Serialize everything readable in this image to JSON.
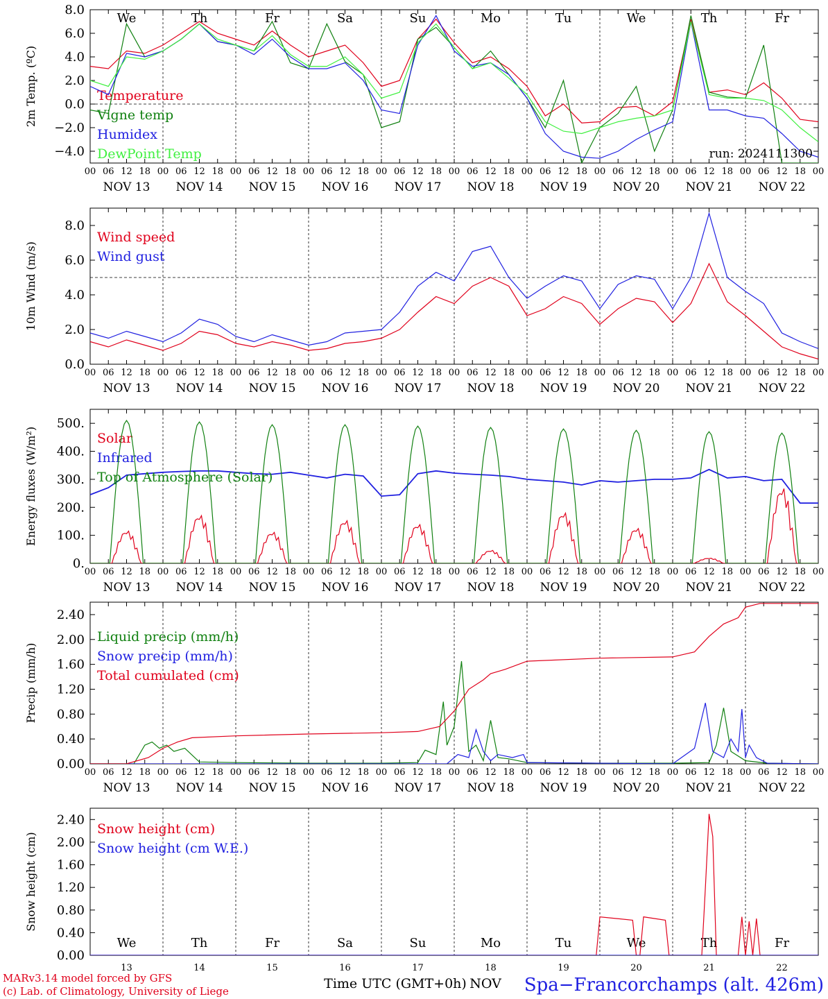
{
  "days_short": [
    "We",
    "Th",
    "Fr",
    "Sa",
    "Su",
    "Mo",
    "Tu",
    "We",
    "Th",
    "Fr"
  ],
  "weekend_color": "#e0001b",
  "dates_long": [
    "NOV 13",
    "NOV 14",
    "NOV 15",
    "NOV 16",
    "NOV 17",
    "NOV 18",
    "NOV 19",
    "NOV 20",
    "NOV 21",
    "NOV 22"
  ],
  "dates_short": [
    "13",
    "14",
    "15",
    "16",
    "17",
    "18",
    "19",
    "20",
    "21",
    "22"
  ],
  "hour_ticks": [
    "00",
    "06",
    "12",
    "18"
  ],
  "xlabel": "Time UTC (GMT+0h)",
  "month_label": "NOV",
  "footer": {
    "line1": "MARv3.14 model forced by GFS",
    "line2": "(c) Lab. of Climatology, University of Liege",
    "station": "Spa−Francorchamps (alt. 426m)",
    "left_color": "#e0001b",
    "station_color": "#2020e0"
  },
  "chart_data": [
    {
      "type": "line",
      "ylabel": "2m Temp. (ºC)",
      "ylim": [
        -5,
        8
      ],
      "yticks": [
        "8.0",
        "6.0",
        "4.0",
        "2.0",
        "0.0",
        "−2.0",
        "−4.0"
      ],
      "ytick_values": [
        8,
        6,
        4,
        2,
        0,
        -2,
        -4
      ],
      "ref_line": 0,
      "run_label": "run: 2024111300",
      "x_days": [
        0,
        0.25,
        0.5,
        0.75,
        1,
        1.25,
        1.5,
        1.75,
        2,
        2.25,
        2.5,
        2.75,
        3,
        3.25,
        3.5,
        3.75,
        4,
        4.25,
        4.5,
        4.75,
        5,
        5.25,
        5.5,
        5.75,
        6,
        6.25,
        6.5,
        6.75,
        7,
        7.25,
        7.5,
        7.75,
        8,
        8.25,
        8.5,
        8.75,
        9,
        9.25,
        9.5,
        9.75,
        10
      ],
      "series": [
        {
          "name": "Temperature",
          "color": "#e0001b",
          "values": [
            3.2,
            3.0,
            4.5,
            4.3,
            5.0,
            6.0,
            7.0,
            6.0,
            5.5,
            5.0,
            6.2,
            5.0,
            4.0,
            4.5,
            5.0,
            3.5,
            1.5,
            2.0,
            5.5,
            7.2,
            5.2,
            3.5,
            4.0,
            3.0,
            1.5,
            -1.0,
            0.0,
            -1.6,
            -1.5,
            -0.3,
            -0.2,
            -1.0,
            0.2,
            7.2,
            1.0,
            1.2,
            0.8,
            1.8,
            0.5,
            -1.3,
            -1.5
          ]
        },
        {
          "name": "Vigne temp",
          "color": "#108010",
          "values": [
            -0.5,
            -0.8,
            6.8,
            4.0,
            4.5,
            5.5,
            6.8,
            5.3,
            5.0,
            4.5,
            7.0,
            3.5,
            3.0,
            6.8,
            3.6,
            2.5,
            -2.0,
            -1.5,
            5.5,
            6.5,
            4.8,
            3.0,
            4.5,
            2.5,
            0.5,
            -2.0,
            2.0,
            -5.0,
            -2.0,
            -0.8,
            1.5,
            -4.0,
            -0.5,
            7.5,
            1.0,
            0.6,
            0.5,
            5.0,
            -5.0,
            -5.0,
            -5.0
          ]
        },
        {
          "name": "Humidex",
          "color": "#2020e0",
          "values": [
            1.5,
            0.8,
            4.3,
            4.0,
            4.5,
            5.5,
            6.8,
            5.3,
            5.0,
            4.2,
            5.5,
            4.0,
            3.0,
            3.0,
            3.5,
            2.0,
            -0.5,
            -0.8,
            5.0,
            7.5,
            4.5,
            3.2,
            3.5,
            2.5,
            0.5,
            -2.5,
            -4.0,
            -4.5,
            -4.6,
            -4.0,
            -3.0,
            -2.2,
            -1.5,
            7.0,
            -0.5,
            -0.5,
            -1.0,
            -1.2,
            -2.5,
            -4.0,
            -4.5
          ]
        },
        {
          "name": "DewPoint Temp",
          "color": "#40f040",
          "values": [
            2.0,
            1.5,
            4.0,
            3.8,
            4.5,
            5.5,
            6.8,
            5.5,
            5.0,
            4.5,
            5.8,
            4.2,
            3.2,
            3.2,
            4.0,
            2.5,
            0.5,
            1.0,
            5.2,
            6.8,
            4.8,
            3.0,
            3.5,
            2.2,
            0.8,
            -1.5,
            -2.3,
            -2.5,
            -2.0,
            -1.5,
            -1.2,
            -1.0,
            -0.5,
            7.0,
            0.8,
            0.5,
            0.5,
            0.3,
            -0.5,
            -2.0,
            -3.2
          ]
        }
      ]
    },
    {
      "type": "line",
      "ylabel": "10m Wind (m/s)",
      "ylim": [
        0,
        9
      ],
      "yticks": [
        "8.0",
        "6.0",
        "4.0",
        "2.0",
        "0.0"
      ],
      "ytick_values": [
        8,
        6,
        4,
        2,
        0
      ],
      "ref_line": 5,
      "x_days": [
        0,
        0.25,
        0.5,
        0.75,
        1,
        1.25,
        1.5,
        1.75,
        2,
        2.25,
        2.5,
        2.75,
        3,
        3.25,
        3.5,
        3.75,
        4,
        4.25,
        4.5,
        4.75,
        5,
        5.25,
        5.5,
        5.75,
        6,
        6.25,
        6.5,
        6.75,
        7,
        7.25,
        7.5,
        7.75,
        8,
        8.25,
        8.5,
        8.75,
        9,
        9.25,
        9.5,
        9.75,
        10
      ],
      "series": [
        {
          "name": "Wind speed",
          "color": "#e0001b",
          "values": [
            1.3,
            1.0,
            1.4,
            1.1,
            0.8,
            1.2,
            1.9,
            1.7,
            1.2,
            1.0,
            1.3,
            1.1,
            0.8,
            0.9,
            1.2,
            1.3,
            1.5,
            2.0,
            3.0,
            3.9,
            3.5,
            4.5,
            5.0,
            4.5,
            2.8,
            3.2,
            3.9,
            3.5,
            2.3,
            3.2,
            3.8,
            3.6,
            2.4,
            3.5,
            5.8,
            3.6,
            2.8,
            1.9,
            1.0,
            0.6,
            0.3
          ]
        },
        {
          "name": "Wind gust",
          "color": "#2020e0",
          "values": [
            1.8,
            1.5,
            1.9,
            1.6,
            1.3,
            1.8,
            2.6,
            2.3,
            1.6,
            1.3,
            1.7,
            1.4,
            1.1,
            1.3,
            1.8,
            1.9,
            2.0,
            3.0,
            4.5,
            5.3,
            4.8,
            6.5,
            6.8,
            5.0,
            3.8,
            4.5,
            5.1,
            4.8,
            3.2,
            4.6,
            5.1,
            4.9,
            3.2,
            5.0,
            8.7,
            5.0,
            4.2,
            3.5,
            1.8,
            1.3,
            0.9
          ]
        }
      ]
    },
    {
      "type": "line",
      "ylabel": "Energy fluxes (W/m²)",
      "ylim": [
        0,
        550
      ],
      "yticks": [
        "500.",
        "400.",
        "300.",
        "200.",
        "100.",
        "0."
      ],
      "ytick_values": [
        500,
        400,
        300,
        200,
        100,
        0
      ],
      "solar_peaks": [
        125,
        185,
        120,
        165,
        150,
        50,
        195,
        135,
        20,
        290
      ],
      "toa_peaks": [
        510,
        505,
        495,
        495,
        490,
        485,
        480,
        475,
        470,
        465
      ],
      "series": [
        {
          "name": "Solar",
          "color": "#e0001b"
        },
        {
          "name": "Infrared",
          "color": "#2020e0",
          "x_days": [
            0,
            0.25,
            0.5,
            0.75,
            1,
            1.25,
            1.5,
            1.75,
            2,
            2.25,
            2.5,
            2.75,
            3,
            3.25,
            3.5,
            3.75,
            4,
            4.25,
            4.5,
            4.75,
            5,
            5.25,
            5.5,
            5.75,
            6,
            6.25,
            6.5,
            6.75,
            7,
            7.25,
            7.5,
            7.75,
            8,
            8.25,
            8.5,
            8.75,
            9,
            9.25,
            9.5,
            9.75,
            10
          ],
          "values": [
            245,
            270,
            315,
            320,
            325,
            328,
            330,
            330,
            325,
            320,
            318,
            325,
            315,
            305,
            318,
            312,
            240,
            245,
            320,
            330,
            322,
            318,
            315,
            310,
            300,
            295,
            290,
            280,
            295,
            290,
            295,
            300,
            300,
            305,
            335,
            305,
            310,
            295,
            300,
            215,
            215
          ]
        },
        {
          "name": "Top of Atmosphere (Solar)",
          "color": "#108010"
        }
      ]
    },
    {
      "type": "line",
      "ylabel": "Precip (mm/h)",
      "ylim": [
        0,
        2.6
      ],
      "yticks": [
        "2.40",
        "2.00",
        "1.60",
        "1.20",
        "0.80",
        "0.40",
        "0.00"
      ],
      "ytick_values": [
        2.4,
        2.0,
        1.6,
        1.2,
        0.8,
        0.4,
        0
      ],
      "series": [
        {
          "name": "Liquid precip (mm/h)",
          "color": "#108010",
          "x_days": [
            0,
            0.6,
            0.75,
            0.85,
            0.95,
            1.05,
            1.15,
            1.3,
            1.5,
            2.0,
            3.0,
            4.0,
            4.5,
            4.6,
            4.75,
            4.85,
            4.9,
            5.0,
            5.1,
            5.2,
            5.3,
            5.4,
            5.5,
            5.6,
            5.75,
            6.0,
            7.0,
            8.0,
            8.5,
            8.6,
            8.7,
            8.8,
            9.0,
            9.3,
            10
          ],
          "values": [
            0,
            0,
            0.3,
            0.35,
            0.25,
            0.3,
            0.2,
            0.25,
            0.03,
            0.02,
            0.01,
            0.01,
            0.02,
            0.22,
            0.15,
            1.0,
            0.3,
            0.6,
            1.65,
            0.2,
            0.3,
            0.05,
            0.7,
            0.1,
            0.08,
            0.02,
            0.01,
            0.01,
            0.02,
            0.3,
            0.9,
            0.2,
            0.05,
            0.01,
            0
          ]
        },
        {
          "name": "Snow precip (mm/h)",
          "color": "#2020e0",
          "x_days": [
            0,
            4.9,
            5.05,
            5.2,
            5.3,
            5.4,
            5.5,
            5.6,
            5.8,
            5.95,
            6.0,
            8.0,
            8.3,
            8.45,
            8.55,
            8.7,
            8.8,
            8.9,
            8.95,
            9.0,
            9.05,
            9.15,
            9.3,
            10
          ],
          "values": [
            0,
            0,
            0.15,
            0.1,
            0.55,
            0.2,
            0.05,
            0.15,
            0.1,
            0.15,
            0.02,
            0,
            0.25,
            0.98,
            0.2,
            0.1,
            0.4,
            0.2,
            0.88,
            0.1,
            0.3,
            0.1,
            0.01,
            0
          ]
        },
        {
          "name": "Total cumulated (cm)",
          "color": "#e0001b",
          "x_days": [
            0,
            0.5,
            0.8,
            1.0,
            1.2,
            1.4,
            2.0,
            3.0,
            4.0,
            4.5,
            4.8,
            5.0,
            5.2,
            5.4,
            5.5,
            5.7,
            6.0,
            7.0,
            8.0,
            8.3,
            8.5,
            8.7,
            8.9,
            9.0,
            9.2,
            10
          ],
          "values": [
            0,
            0,
            0.1,
            0.25,
            0.35,
            0.42,
            0.45,
            0.48,
            0.5,
            0.52,
            0.6,
            0.85,
            1.2,
            1.35,
            1.45,
            1.52,
            1.65,
            1.7,
            1.72,
            1.8,
            2.05,
            2.25,
            2.35,
            2.52,
            2.58,
            2.58
          ]
        }
      ]
    },
    {
      "type": "line",
      "ylabel": "Snow height (cm)",
      "ylim": [
        0,
        2.6
      ],
      "yticks": [
        "2.40",
        "2.00",
        "1.60",
        "1.20",
        "0.80",
        "0.40",
        "0.00"
      ],
      "ytick_values": [
        2.4,
        2.0,
        1.6,
        1.2,
        0.8,
        0.4,
        0
      ],
      "series": [
        {
          "name": "Snow height (cm)",
          "color": "#e0001b",
          "x_days": [
            0,
            6.95,
            7.0,
            7.45,
            7.5,
            7.55,
            7.6,
            7.9,
            7.95,
            8.4,
            8.45,
            8.5,
            8.55,
            8.6,
            8.9,
            8.95,
            9.0,
            9.05,
            9.1,
            9.15,
            9.2,
            10
          ],
          "values": [
            0,
            0,
            0.68,
            0.62,
            0,
            0,
            0.68,
            0.62,
            0,
            0,
            1.2,
            2.5,
            2.1,
            0,
            0,
            0.68,
            0,
            0.6,
            0,
            0.65,
            0,
            0
          ]
        },
        {
          "name": "Snow height (cm W.E.)",
          "color": "#2020e0",
          "x_days": [
            0,
            10
          ],
          "values": [
            0,
            0
          ]
        }
      ]
    }
  ]
}
